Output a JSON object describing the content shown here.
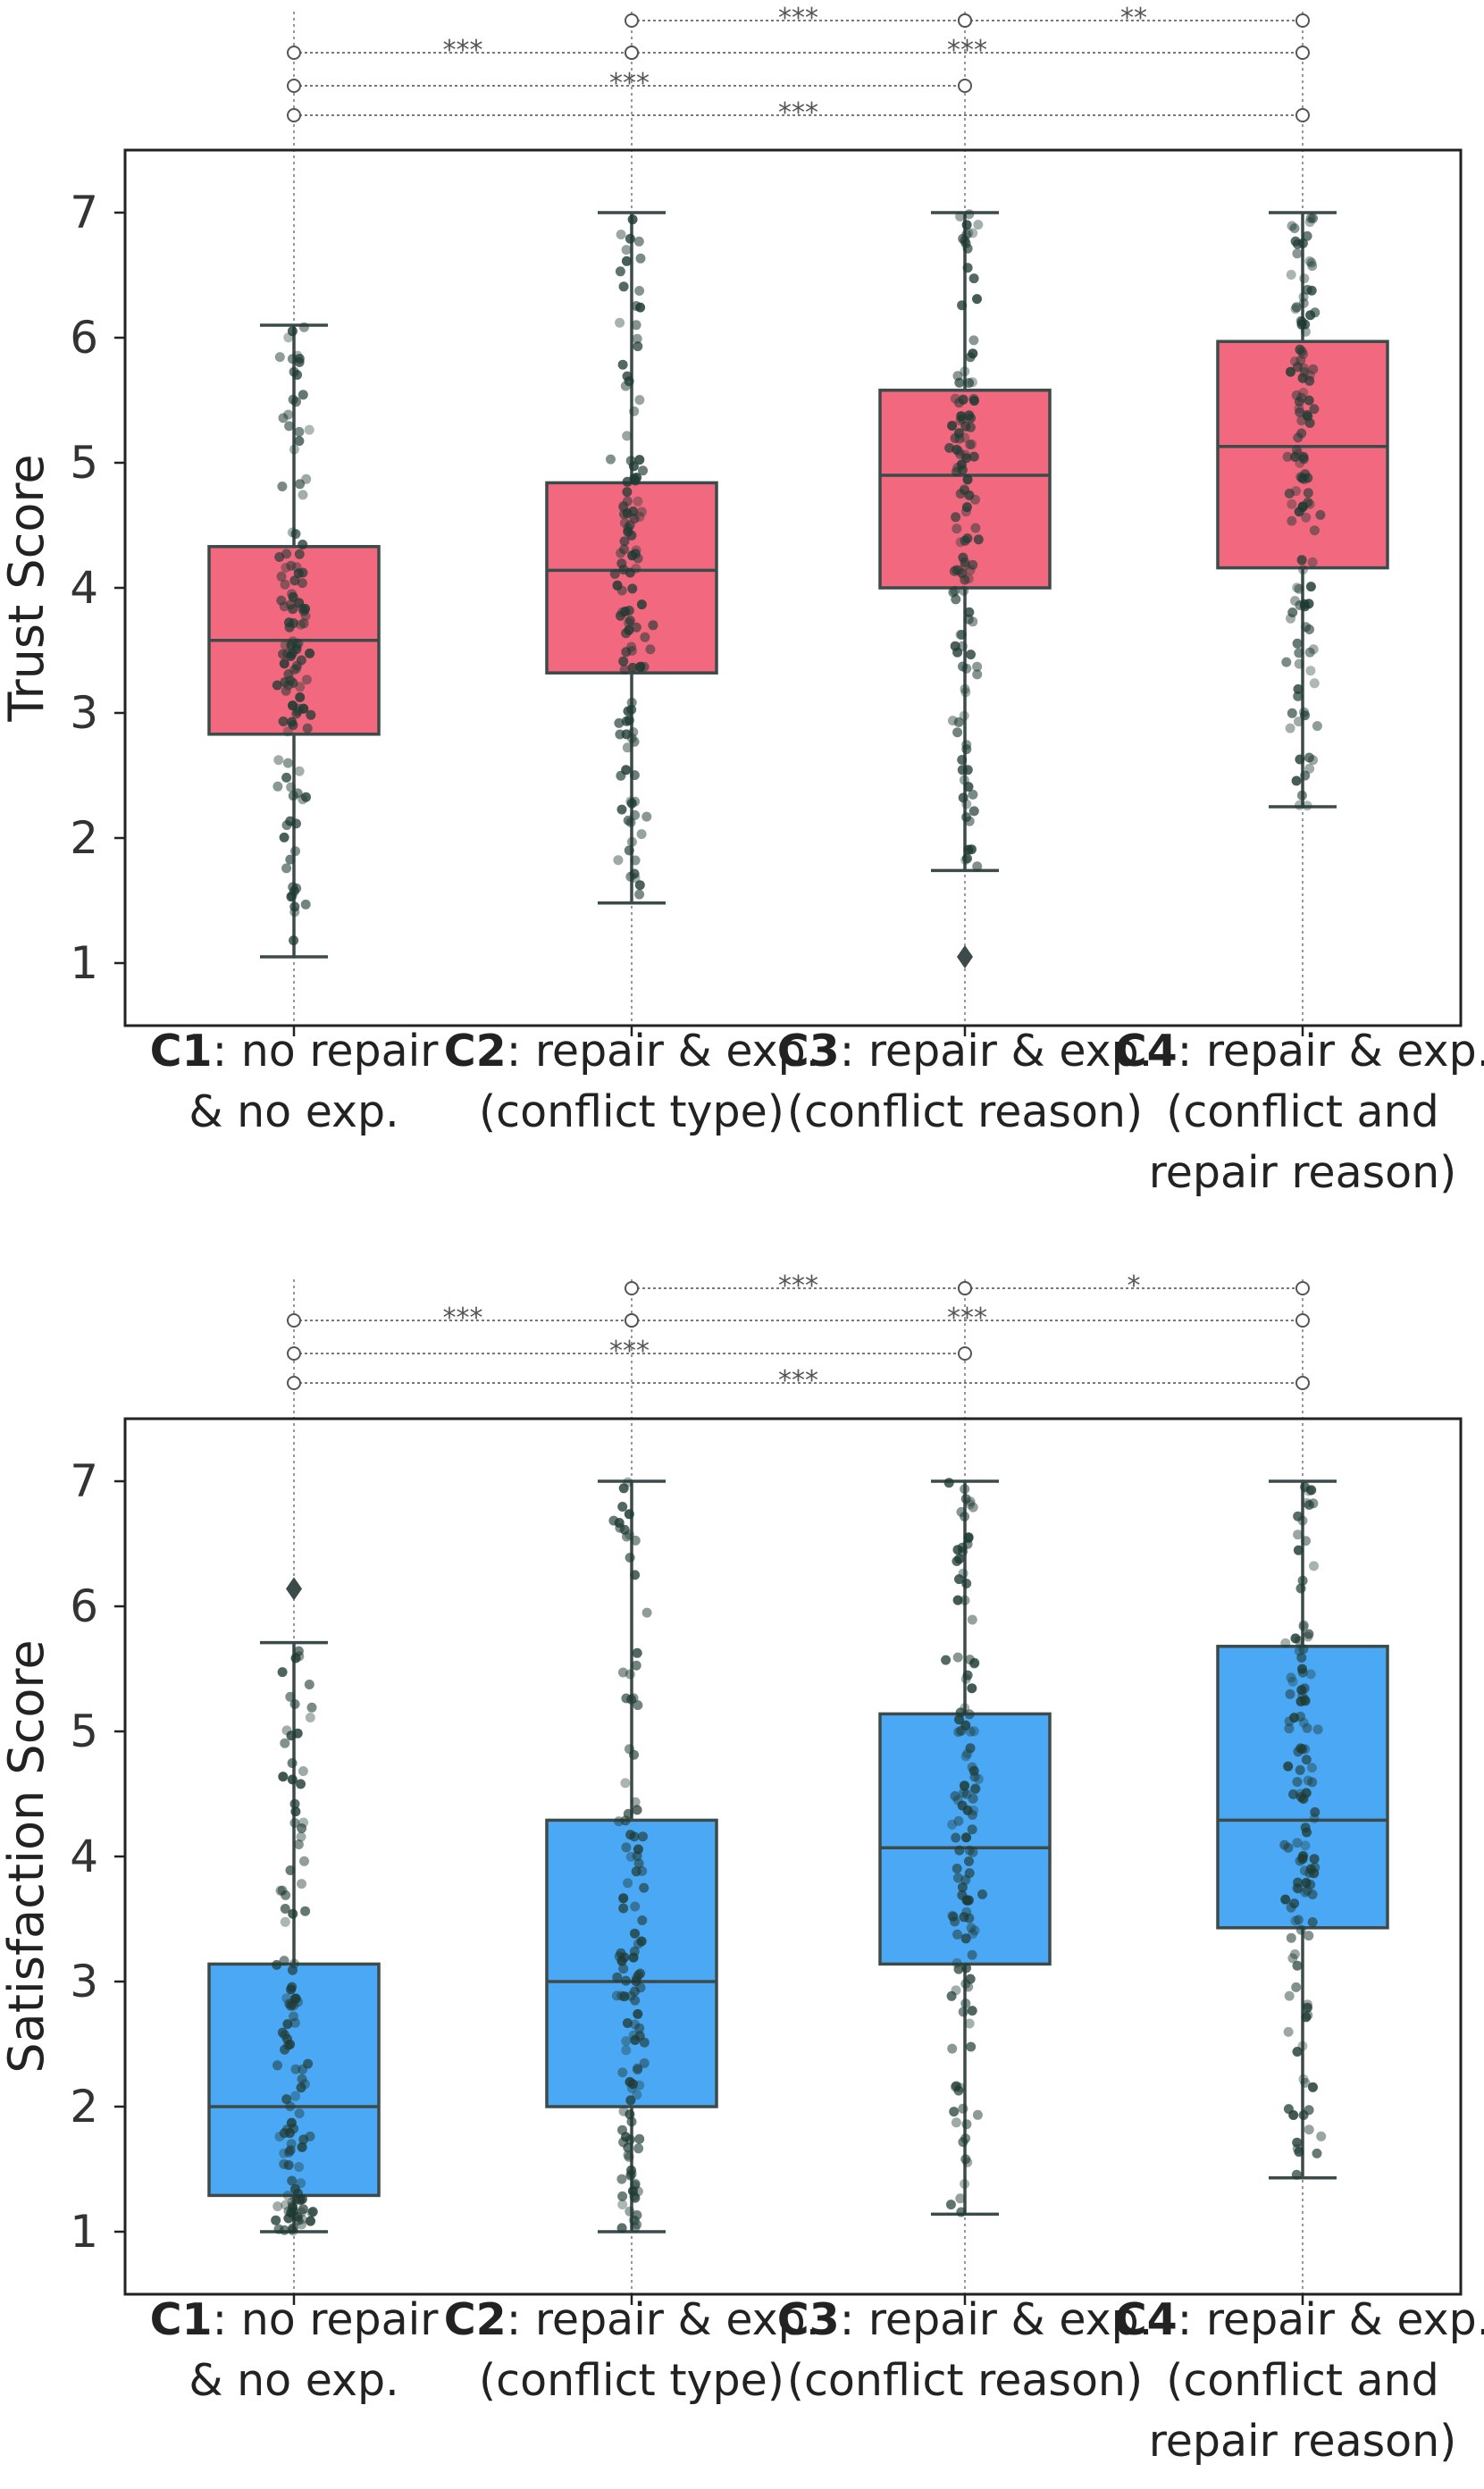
{
  "colors": {
    "trust_box": "#f2687f",
    "satisfaction_box": "#4aa8f5",
    "line": "#3d4a4a",
    "dot": "#1f3a33"
  },
  "categories": [
    {
      "code": "C1",
      "text": [
        ": no repair",
        "& no exp."
      ]
    },
    {
      "code": "C2",
      "text": [
        ": repair & exp.",
        "(conflict type)"
      ]
    },
    {
      "code": "C3",
      "text": [
        ": repair & exp.",
        "(conflict reason)"
      ]
    },
    {
      "code": "C4",
      "text": [
        ": repair & exp.",
        "(conflict and",
        "repair reason)"
      ]
    }
  ],
  "chart_data": [
    {
      "type": "box",
      "ylabel": "Trust Score",
      "ylim": [
        0.5,
        7.5
      ],
      "yticks": [
        1,
        2,
        3,
        4,
        5,
        6,
        7
      ],
      "grid": false,
      "box_color": "#f2687f",
      "boxes": [
        {
          "category": "C1",
          "min": 1.05,
          "q1": 2.83,
          "median": 3.58,
          "q3": 4.33,
          "max": 6.1,
          "outliers": []
        },
        {
          "category": "C2",
          "min": 1.48,
          "q1": 3.32,
          "median": 4.14,
          "q3": 4.84,
          "max": 7.0,
          "outliers": []
        },
        {
          "category": "C3",
          "min": 1.74,
          "q1": 4.0,
          "median": 4.9,
          "q3": 5.58,
          "max": 7.0,
          "outliers": [
            1.05
          ]
        },
        {
          "category": "C4",
          "min": 2.25,
          "q1": 4.16,
          "median": 5.13,
          "q3": 5.97,
          "max": 7.0,
          "outliers": []
        }
      ],
      "significance": [
        {
          "from": "C2",
          "to": "C3",
          "label": "***"
        },
        {
          "from": "C3",
          "to": "C4",
          "label": "**"
        },
        {
          "from": "C1",
          "to": "C2",
          "label": "***"
        },
        {
          "from": "C2",
          "to": "C4",
          "label": "***"
        },
        {
          "from": "C1",
          "to": "C3",
          "label": "***"
        },
        {
          "from": "C1",
          "to": "C4",
          "label": "***"
        }
      ]
    },
    {
      "type": "box",
      "ylabel": "Satisfaction Score",
      "ylim": [
        0.5,
        7.5
      ],
      "yticks": [
        1,
        2,
        3,
        4,
        5,
        6,
        7
      ],
      "grid": false,
      "box_color": "#4aa8f5",
      "boxes": [
        {
          "category": "C1",
          "min": 1.0,
          "q1": 1.29,
          "median": 2.0,
          "q3": 3.14,
          "max": 5.71,
          "outliers": [
            6.14
          ]
        },
        {
          "category": "C2",
          "min": 1.0,
          "q1": 2.0,
          "median": 3.0,
          "q3": 4.29,
          "max": 7.0,
          "outliers": []
        },
        {
          "category": "C3",
          "min": 1.14,
          "q1": 3.14,
          "median": 4.07,
          "q3": 5.14,
          "max": 7.0,
          "outliers": []
        },
        {
          "category": "C4",
          "min": 1.43,
          "q1": 3.43,
          "median": 4.29,
          "q3": 5.68,
          "max": 7.0,
          "outliers": []
        }
      ],
      "significance": [
        {
          "from": "C2",
          "to": "C3",
          "label": "***"
        },
        {
          "from": "C3",
          "to": "C4",
          "label": "*"
        },
        {
          "from": "C1",
          "to": "C2",
          "label": "***"
        },
        {
          "from": "C2",
          "to": "C4",
          "label": "***"
        },
        {
          "from": "C1",
          "to": "C3",
          "label": "***"
        },
        {
          "from": "C1",
          "to": "C4",
          "label": "***"
        }
      ]
    }
  ]
}
